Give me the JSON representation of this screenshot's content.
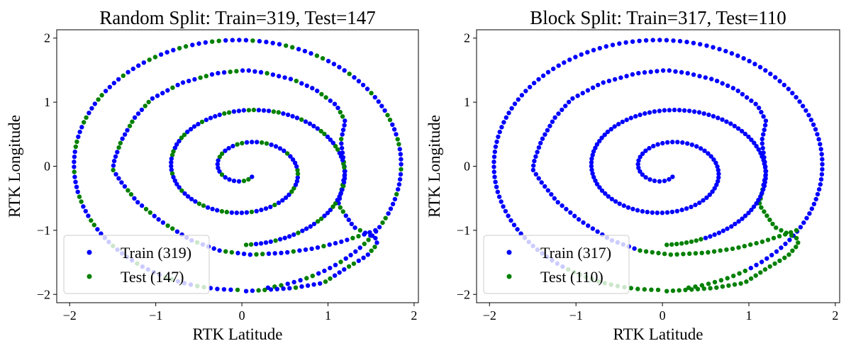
{
  "colors": {
    "train": "#0000ff",
    "test": "#008000",
    "frame": "#000000",
    "legend_border": "#cccccc"
  },
  "chart_data": [
    {
      "type": "scatter",
      "title": "Random Split: Train=319, Test=147",
      "xlabel": "RTK Latitude",
      "ylabel": "RTK Longitude",
      "xlim": [
        -2.15,
        2.05
      ],
      "ylim": [
        -2.13,
        2.13
      ],
      "xticks": [
        -2,
        -1,
        0,
        1,
        2
      ],
      "yticks": [
        -2,
        -1,
        0,
        1,
        2
      ],
      "xtick_labels": [
        "−2",
        "−1",
        "0",
        "1",
        "2"
      ],
      "ytick_labels": [
        "−2",
        "−1",
        "0",
        "1",
        "2"
      ],
      "grid": false,
      "legend_position": "lower-left",
      "split": "random",
      "series": [
        {
          "name": "Train (319)",
          "color": "#0000ff",
          "count": 319
        },
        {
          "name": "Test (147)",
          "color": "#008000",
          "count": 147
        }
      ]
    },
    {
      "type": "scatter",
      "title": "Block Split: Train=317, Test=110",
      "xlabel": "RTK Latitude",
      "ylabel": "RTK Longitude",
      "xlim": [
        -2.15,
        2.05
      ],
      "ylim": [
        -2.13,
        2.13
      ],
      "xticks": [
        -2,
        -1,
        0,
        1,
        2
      ],
      "yticks": [
        -2,
        -1,
        0,
        1,
        2
      ],
      "xtick_labels": [
        "−2",
        "−1",
        "0",
        "1",
        "2"
      ],
      "ytick_labels": [
        "−2",
        "−1",
        "0",
        "1",
        "2"
      ],
      "grid": false,
      "legend_position": "lower-left",
      "split": "block",
      "series": [
        {
          "name": "Train (317)",
          "color": "#0000ff",
          "count": 317
        },
        {
          "name": "Test (110)",
          "color": "#008000",
          "count": 110
        }
      ]
    }
  ]
}
